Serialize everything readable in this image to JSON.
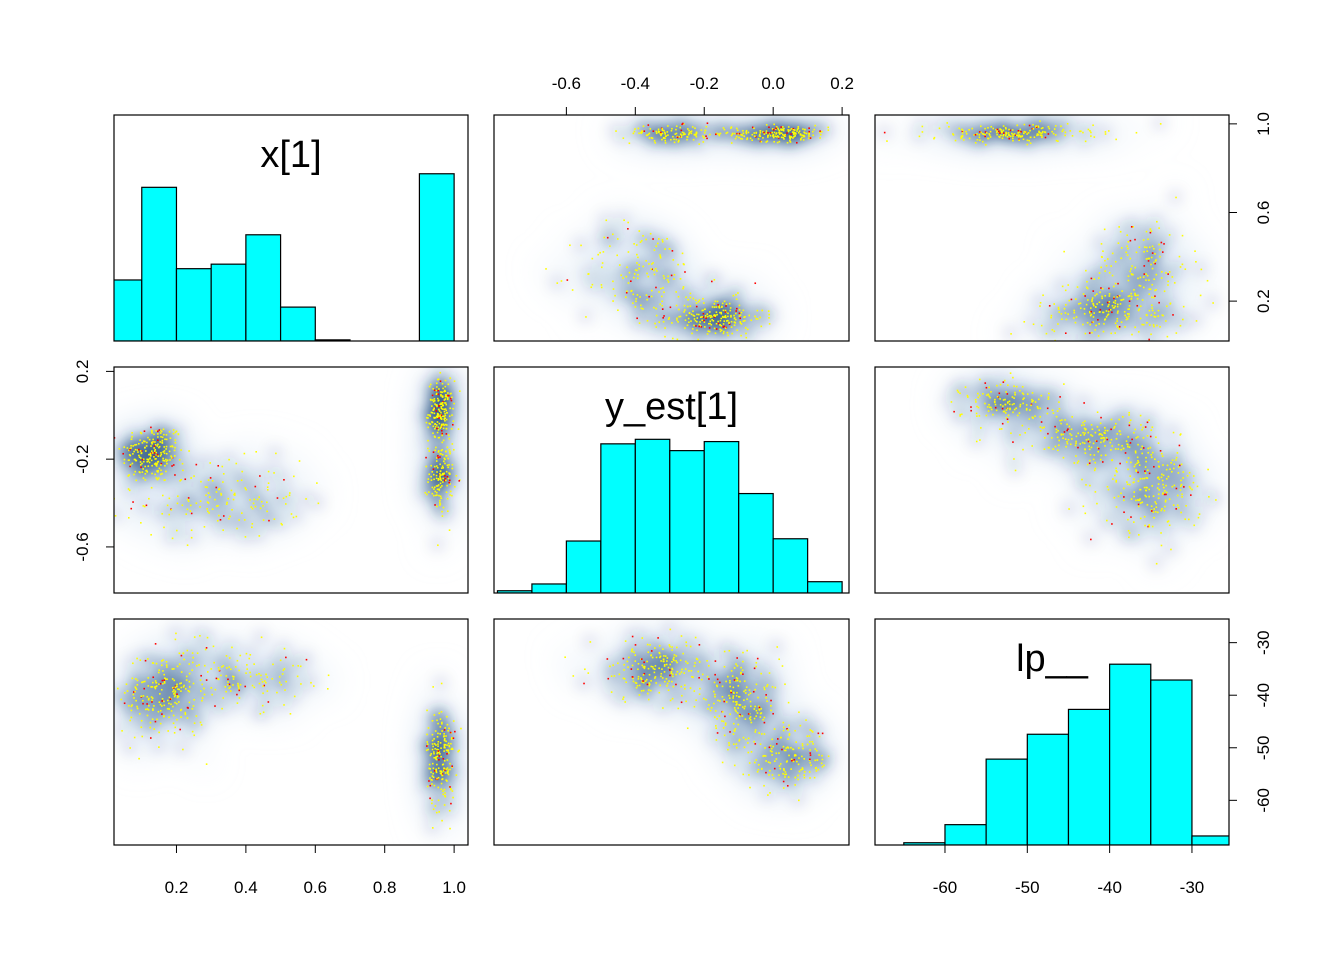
{
  "chart_data": {
    "type": "pairs",
    "variables": [
      "x[1]",
      "y_est[1]",
      "lp__"
    ],
    "colors": {
      "histogram_fill": "#00FFFF",
      "density_dark": "#08306B",
      "density_mid": "#2B6CB0",
      "density_light": "#D6E6F4",
      "points_yellow": "#FFFF00",
      "points_red": "#FF0000"
    },
    "axes": {
      "x[1]": {
        "lim": [
          0.02,
          1.04
        ],
        "ticks": [
          0.2,
          0.4,
          0.6,
          0.8,
          1.0
        ],
        "tick_labels": [
          "0.2",
          "0.4",
          "0.6",
          "0.8",
          "1.0"
        ]
      },
      "y_est[1]": {
        "lim": [
          -0.81,
          0.22
        ],
        "ticks": [
          -0.6,
          -0.4,
          -0.2,
          0.0,
          0.2
        ],
        "tick_labels": [
          "-0.6",
          "-0.4",
          "-0.2",
          "0.0",
          "0.2"
        ],
        "left_ticks": [
          -0.6,
          -0.2,
          0.2
        ],
        "left_tick_labels": [
          "-0.6",
          "-0.2",
          "0.2"
        ]
      },
      "lp__": {
        "lim": [
          -68.5,
          -25.5
        ],
        "ticks": [
          -60,
          -50,
          -40,
          -30
        ],
        "tick_labels": [
          "-60",
          "-50",
          "-40",
          "-30"
        ]
      }
    },
    "histograms": [
      {
        "variable": "x[1]",
        "breaks": [
          0.0,
          0.1,
          0.2,
          0.3,
          0.4,
          0.5,
          0.6,
          0.7,
          0.8,
          0.9,
          1.0
        ],
        "relative_heights": [
          0.27,
          0.68,
          0.32,
          0.34,
          0.47,
          0.15,
          0.005,
          0,
          0,
          0.74
        ]
      },
      {
        "variable": "y_est[1]",
        "breaks": [
          -0.8,
          -0.7,
          -0.6,
          -0.5,
          -0.4,
          -0.3,
          -0.2,
          -0.1,
          0.0,
          0.1,
          0.2
        ],
        "relative_heights": [
          0.01,
          0.04,
          0.23,
          0.66,
          0.68,
          0.63,
          0.67,
          0.44,
          0.24,
          0.05
        ]
      },
      {
        "variable": "lp__",
        "breaks": [
          -70,
          -65,
          -60,
          -55,
          -50,
          -45,
          -40,
          -35,
          -30,
          -25
        ],
        "relative_heights": [
          0.0,
          0.01,
          0.09,
          0.38,
          0.49,
          0.6,
          0.8,
          0.73,
          0.04
        ]
      }
    ],
    "clusters": {
      "x_y": [
        {
          "x": 0.13,
          "y": -0.17,
          "sx": 0.045,
          "sy": 0.07,
          "w": 1.0
        },
        {
          "x": 0.32,
          "y": -0.38,
          "sx": 0.12,
          "sy": 0.09,
          "w": 0.7
        },
        {
          "x": 0.96,
          "y": 0.02,
          "sx": 0.018,
          "sy": 0.07,
          "w": 0.9
        },
        {
          "x": 0.96,
          "y": -0.28,
          "sx": 0.018,
          "sy": 0.08,
          "w": 0.6
        }
      ],
      "x_lp": [
        {
          "x": 0.16,
          "y": -40,
          "sx": 0.06,
          "sy": 4.5,
          "w": 1.0
        },
        {
          "x": 0.38,
          "y": -36,
          "sx": 0.1,
          "sy": 3,
          "w": 0.6
        },
        {
          "x": 0.96,
          "y": -52,
          "sx": 0.02,
          "sy": 5,
          "w": 0.9
        }
      ],
      "y_lp": [
        {
          "x": -0.33,
          "y": -35,
          "sx": 0.1,
          "sy": 3,
          "w": 1.0
        },
        {
          "x": -0.1,
          "y": -42,
          "sx": 0.06,
          "sy": 4,
          "w": 0.9
        },
        {
          "x": 0.05,
          "y": -52,
          "sx": 0.06,
          "sy": 3,
          "w": 0.7
        }
      ]
    }
  }
}
